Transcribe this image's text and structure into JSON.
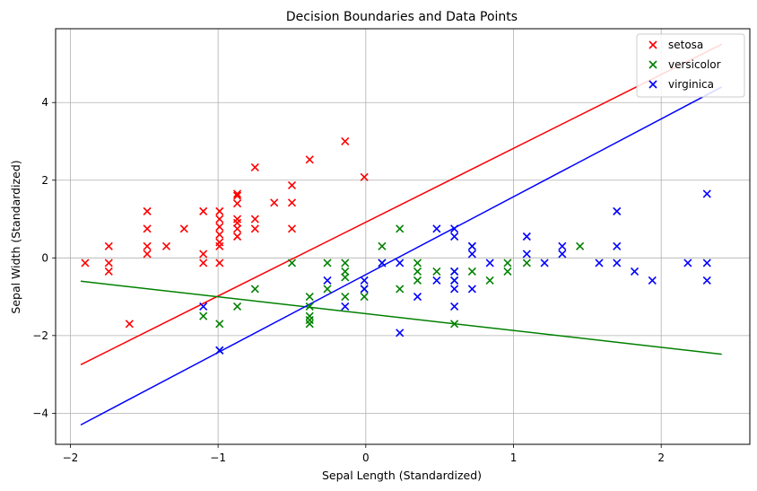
{
  "chart_data": {
    "type": "scatter",
    "title": "Decision Boundaries and Data Points",
    "xlabel": "Sepal Length (Standardized)",
    "ylabel": "Sepal Width (Standardized)",
    "xlim": [
      -2.1,
      2.6
    ],
    "ylim": [
      -4.8,
      5.9
    ],
    "xticks": [
      -2,
      -1,
      0,
      1,
      2
    ],
    "yticks": [
      -4,
      -2,
      0,
      2,
      4
    ],
    "grid": true,
    "legend_position": "top-right",
    "marker": "x",
    "series": [
      {
        "name": "setosa",
        "color": "#ff0000",
        "points": [
          [
            -1.9,
            -0.13
          ],
          [
            -1.74,
            0.3
          ],
          [
            -1.74,
            -0.13
          ],
          [
            -1.74,
            -0.35
          ],
          [
            -1.6,
            -1.7
          ],
          [
            -1.48,
            1.2
          ],
          [
            -1.48,
            0.75
          ],
          [
            -1.48,
            0.3
          ],
          [
            -1.48,
            0.1
          ],
          [
            -1.35,
            0.3
          ],
          [
            -1.23,
            0.75
          ],
          [
            -1.1,
            1.2
          ],
          [
            -1.1,
            0.1
          ],
          [
            -1.1,
            -0.13
          ],
          [
            -0.99,
            1.2
          ],
          [
            -0.99,
            1.0
          ],
          [
            -0.99,
            0.8
          ],
          [
            -0.99,
            0.6
          ],
          [
            -0.99,
            0.4
          ],
          [
            -0.99,
            0.3
          ],
          [
            -0.99,
            -0.13
          ],
          [
            -0.87,
            1.65
          ],
          [
            -0.87,
            1.6
          ],
          [
            -0.87,
            1.4
          ],
          [
            -0.87,
            1.0
          ],
          [
            -0.87,
            0.9
          ],
          [
            -0.87,
            0.75
          ],
          [
            -0.87,
            0.55
          ],
          [
            -0.75,
            2.33
          ],
          [
            -0.75,
            1.0
          ],
          [
            -0.75,
            0.75
          ],
          [
            -0.62,
            1.42
          ],
          [
            -0.5,
            1.87
          ],
          [
            -0.5,
            1.42
          ],
          [
            -0.5,
            0.75
          ],
          [
            -0.38,
            2.53
          ],
          [
            -0.14,
            3.0
          ],
          [
            -0.01,
            2.08
          ]
        ]
      },
      {
        "name": "versicolor",
        "color": "#008000",
        "points": [
          [
            -1.1,
            -1.5
          ],
          [
            -0.99,
            -1.7
          ],
          [
            -0.99,
            -2.38
          ],
          [
            -0.87,
            -1.25
          ],
          [
            -0.75,
            -0.8
          ],
          [
            -0.5,
            -0.13
          ],
          [
            -0.26,
            -0.13
          ],
          [
            -0.26,
            -0.8
          ],
          [
            -0.38,
            -1.0
          ],
          [
            -0.38,
            -1.25
          ],
          [
            -0.38,
            -1.5
          ],
          [
            -0.38,
            -1.7
          ],
          [
            -0.38,
            -1.6
          ],
          [
            -0.14,
            -0.13
          ],
          [
            -0.14,
            -0.35
          ],
          [
            -0.14,
            -0.5
          ],
          [
            -0.14,
            -1.0
          ],
          [
            -0.01,
            -0.8
          ],
          [
            -0.01,
            -1.0
          ],
          [
            0.11,
            0.3
          ],
          [
            0.11,
            -0.13
          ],
          [
            0.23,
            0.75
          ],
          [
            0.23,
            -0.8
          ],
          [
            0.35,
            -0.13
          ],
          [
            0.35,
            -0.35
          ],
          [
            0.35,
            -0.58
          ],
          [
            0.48,
            -0.35
          ],
          [
            0.6,
            -0.35
          ],
          [
            0.6,
            -0.58
          ],
          [
            0.6,
            -1.7
          ],
          [
            0.72,
            0.3
          ],
          [
            0.72,
            -0.35
          ],
          [
            0.84,
            -0.58
          ],
          [
            0.96,
            -0.13
          ],
          [
            0.96,
            -0.35
          ],
          [
            1.09,
            -0.13
          ],
          [
            1.45,
            0.3
          ]
        ]
      },
      {
        "name": "virginica",
        "color": "#0000ff",
        "points": [
          [
            -1.1,
            -1.25
          ],
          [
            -0.99,
            -2.38
          ],
          [
            -0.26,
            -0.58
          ],
          [
            -0.14,
            -1.25
          ],
          [
            -0.01,
            -0.58
          ],
          [
            -0.01,
            -0.8
          ],
          [
            0.11,
            -0.13
          ],
          [
            0.23,
            -0.13
          ],
          [
            0.23,
            -1.93
          ],
          [
            0.35,
            -1.0
          ],
          [
            0.48,
            0.75
          ],
          [
            0.48,
            -0.58
          ],
          [
            0.6,
            0.75
          ],
          [
            0.6,
            0.55
          ],
          [
            0.6,
            -0.35
          ],
          [
            0.6,
            -0.58
          ],
          [
            0.6,
            -0.8
          ],
          [
            0.6,
            -1.25
          ],
          [
            0.72,
            0.3
          ],
          [
            0.72,
            0.1
          ],
          [
            0.72,
            -0.8
          ],
          [
            0.84,
            -0.13
          ],
          [
            1.09,
            0.55
          ],
          [
            1.09,
            0.1
          ],
          [
            1.21,
            -0.13
          ],
          [
            1.33,
            0.3
          ],
          [
            1.33,
            0.1
          ],
          [
            1.58,
            -0.13
          ],
          [
            1.7,
            1.2
          ],
          [
            1.7,
            0.3
          ],
          [
            1.7,
            -0.13
          ],
          [
            1.82,
            -0.35
          ],
          [
            1.94,
            -0.58
          ],
          [
            2.18,
            -0.13
          ],
          [
            2.31,
            1.65
          ],
          [
            2.31,
            -0.13
          ],
          [
            2.31,
            -0.58
          ]
        ]
      }
    ],
    "lines": [
      {
        "class": "setosa",
        "color": "#ff0000",
        "x": [
          -1.93,
          2.41
        ],
        "y": [
          -2.75,
          5.5
        ]
      },
      {
        "class": "versicolor",
        "color": "#008000",
        "x": [
          -1.93,
          2.41
        ],
        "y": [
          -0.6,
          -2.48
        ]
      },
      {
        "class": "virginica",
        "color": "#0000ff",
        "x": [
          -1.93,
          2.41
        ],
        "y": [
          -4.3,
          4.4
        ]
      }
    ]
  }
}
